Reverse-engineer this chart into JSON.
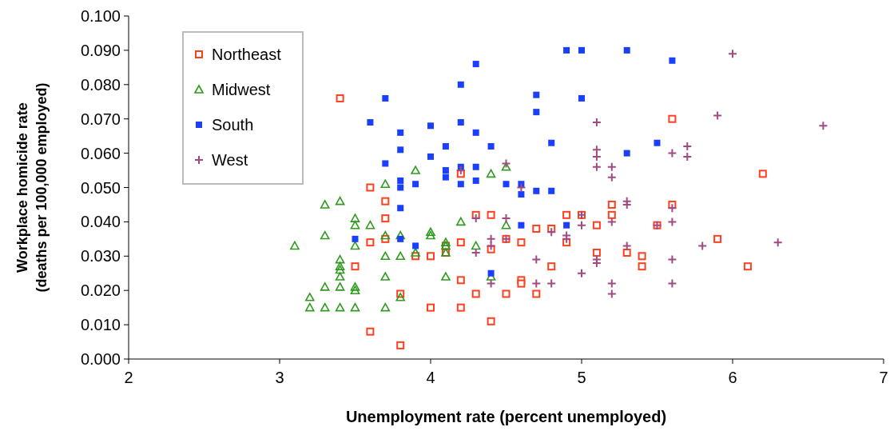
{
  "chart_data": {
    "type": "scatter",
    "xlabel": "Unemployment rate (percent unemployed)",
    "ylabel": "Workplace homicide rate\n(deaths per 100,000 employed)",
    "xlim": [
      2,
      7
    ],
    "xticks": [
      2,
      3,
      4,
      5,
      6,
      7
    ],
    "ylim": [
      0,
      0.1
    ],
    "yticks": [
      {
        "value": 0,
        "label": "0.000"
      },
      {
        "value": 0.01,
        "label": "0.010"
      },
      {
        "value": 0.02,
        "label": "0.020"
      },
      {
        "value": 0.03,
        "label": "0.030"
      },
      {
        "value": 0.04,
        "label": "0.040"
      },
      {
        "value": 0.05,
        "label": "0.050"
      },
      {
        "value": 0.06,
        "label": "0.060"
      },
      {
        "value": 0.07,
        "label": "0.070"
      },
      {
        "value": 0.08,
        "label": "0.080"
      },
      {
        "value": 0.09,
        "label": "0.090"
      },
      {
        "value": 0.1,
        "label": "0.100"
      }
    ],
    "grid": false,
    "legend": "top left",
    "series": [
      {
        "name": "Northeast",
        "color": "#ff4020",
        "marker": "square",
        "x": [
          3.4,
          3.6,
          3.6,
          3.5,
          3.6,
          3.7,
          3.7,
          3.7,
          3.8,
          3.8,
          3.9,
          4.0,
          4.0,
          4.1,
          4.1,
          4.2,
          4.2,
          4.2,
          4.2,
          4.3,
          4.3,
          4.4,
          4.4,
          4.4,
          4.5,
          4.5,
          4.6,
          4.6,
          4.6,
          4.7,
          4.7,
          4.8,
          4.8,
          4.9,
          4.9,
          5.0,
          5.1,
          5.1,
          5.2,
          5.2,
          5.3,
          5.4,
          5.4,
          5.5,
          5.6,
          5.6,
          5.9,
          6.1,
          6.2
        ],
        "values": [
          0.076,
          0.05,
          0.034,
          0.027,
          0.008,
          0.046,
          0.041,
          0.035,
          0.019,
          0.004,
          0.03,
          0.03,
          0.015,
          0.031,
          0.033,
          0.034,
          0.023,
          0.015,
          0.054,
          0.042,
          0.019,
          0.042,
          0.011,
          0.032,
          0.035,
          0.019,
          0.034,
          0.023,
          0.022,
          0.038,
          0.019,
          0.027,
          0.038,
          0.042,
          0.034,
          0.042,
          0.039,
          0.031,
          0.045,
          0.042,
          0.031,
          0.03,
          0.027,
          0.039,
          0.07,
          0.045,
          0.035,
          0.027,
          0.054
        ]
      },
      {
        "name": "Midwest",
        "color": "#2e9a1e",
        "marker": "triangle",
        "x": [
          3.1,
          3.2,
          3.2,
          3.3,
          3.3,
          3.3,
          3.3,
          3.4,
          3.4,
          3.4,
          3.4,
          3.4,
          3.4,
          3.4,
          3.5,
          3.5,
          3.5,
          3.5,
          3.5,
          3.5,
          3.6,
          3.7,
          3.7,
          3.7,
          3.7,
          3.7,
          3.8,
          3.8,
          3.8,
          3.9,
          3.9,
          4.0,
          4.0,
          4.1,
          4.1,
          4.1,
          4.1,
          4.2,
          4.3,
          4.4,
          4.5,
          4.5,
          4.4
        ],
        "values": [
          0.033,
          0.018,
          0.015,
          0.045,
          0.036,
          0.021,
          0.015,
          0.046,
          0.029,
          0.027,
          0.026,
          0.024,
          0.021,
          0.015,
          0.041,
          0.039,
          0.033,
          0.021,
          0.02,
          0.015,
          0.039,
          0.051,
          0.036,
          0.03,
          0.024,
          0.015,
          0.036,
          0.03,
          0.018,
          0.055,
          0.031,
          0.037,
          0.036,
          0.034,
          0.033,
          0.031,
          0.024,
          0.04,
          0.033,
          0.054,
          0.056,
          0.039,
          0.024
        ]
      },
      {
        "name": "South",
        "color": "#1a3fff",
        "marker": "square",
        "x": [
          3.5,
          3.6,
          3.7,
          3.7,
          3.8,
          3.8,
          3.8,
          3.8,
          3.8,
          3.8,
          3.9,
          3.9,
          4.0,
          4.0,
          4.1,
          4.1,
          4.1,
          4.2,
          4.2,
          4.2,
          4.2,
          4.3,
          4.3,
          4.3,
          4.3,
          4.4,
          4.4,
          4.5,
          4.6,
          4.6,
          4.6,
          4.7,
          4.7,
          4.7,
          4.8,
          4.8,
          4.9,
          4.9,
          5.0,
          5.0,
          5.3,
          5.3,
          5.5,
          5.6
        ],
        "values": [
          0.035,
          0.069,
          0.076,
          0.057,
          0.066,
          0.061,
          0.052,
          0.05,
          0.044,
          0.035,
          0.051,
          0.033,
          0.068,
          0.059,
          0.062,
          0.055,
          0.053,
          0.08,
          0.069,
          0.056,
          0.051,
          0.086,
          0.066,
          0.056,
          0.052,
          0.062,
          0.025,
          0.051,
          0.051,
          0.048,
          0.039,
          0.077,
          0.072,
          0.049,
          0.063,
          0.049,
          0.09,
          0.039,
          0.09,
          0.076,
          0.09,
          0.06,
          0.063,
          0.087
        ]
      },
      {
        "name": "West",
        "color": "#a04a80",
        "marker": "cross",
        "x": [
          4.2,
          4.3,
          4.3,
          4.4,
          4.4,
          4.4,
          4.5,
          4.5,
          4.5,
          4.6,
          4.7,
          4.7,
          4.8,
          4.8,
          4.9,
          4.9,
          5.0,
          5.0,
          5.0,
          5.1,
          5.1,
          5.1,
          5.1,
          5.1,
          5.1,
          5.2,
          5.2,
          5.2,
          5.2,
          5.2,
          5.3,
          5.3,
          5.3,
          5.5,
          5.6,
          5.6,
          5.6,
          5.6,
          5.6,
          5.7,
          5.7,
          5.8,
          5.9,
          6.0,
          6.3,
          6.6
        ],
        "values": [
          0.055,
          0.041,
          0.031,
          0.035,
          0.033,
          0.022,
          0.057,
          0.041,
          0.035,
          0.05,
          0.029,
          0.022,
          0.037,
          0.022,
          0.036,
          0.035,
          0.042,
          0.039,
          0.025,
          0.069,
          0.061,
          0.059,
          0.056,
          0.029,
          0.028,
          0.056,
          0.053,
          0.04,
          0.022,
          0.019,
          0.046,
          0.045,
          0.033,
          0.039,
          0.06,
          0.044,
          0.04,
          0.029,
          0.022,
          0.062,
          0.059,
          0.033,
          0.071,
          0.089,
          0.034,
          0.068
        ]
      }
    ]
  }
}
